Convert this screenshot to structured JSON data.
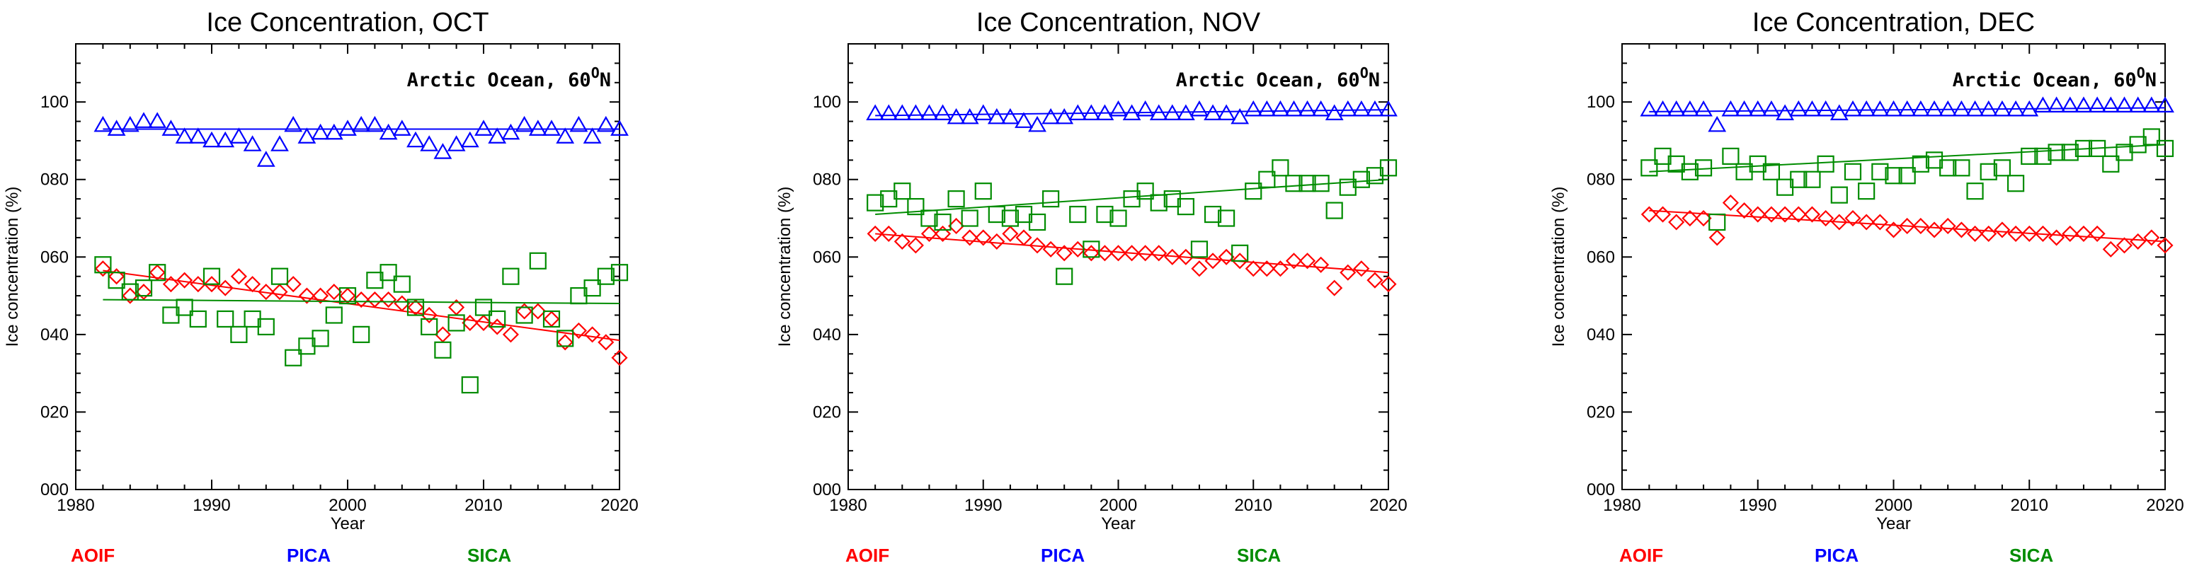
{
  "colors": {
    "AOIF": "#ff0000",
    "PICA": "#0000ff",
    "SICA": "#008c00",
    "axis": "#000000"
  },
  "legend": [
    {
      "name": "AOIF",
      "color": "#ff0000"
    },
    {
      "name": "PICA",
      "color": "#0000ff"
    },
    {
      "name": "SICA",
      "color": "#008c00"
    }
  ],
  "chart_data": [
    {
      "type": "scatter",
      "title": "Ice Concentration, OCT",
      "region_text": "Arctic Ocean, 60",
      "region_sup": "O",
      "region_end": "N",
      "xlabel": "Year",
      "ylabel": "Ice concentration (%)",
      "xlim": [
        1980,
        2020
      ],
      "ylim": [
        0,
        115
      ],
      "xticks": [
        1980,
        1990,
        2000,
        2010,
        2020
      ],
      "yticks": [
        0,
        20,
        40,
        60,
        80,
        100
      ],
      "ytick_labels": [
        "000",
        "020",
        "040",
        "060",
        "080",
        "100"
      ],
      "x": [
        1982,
        1983,
        1984,
        1985,
        1986,
        1987,
        1988,
        1989,
        1990,
        1991,
        1992,
        1993,
        1994,
        1995,
        1996,
        1997,
        1998,
        1999,
        2000,
        2001,
        2002,
        2003,
        2004,
        2005,
        2006,
        2007,
        2008,
        2009,
        2010,
        2011,
        2012,
        2013,
        2014,
        2015,
        2016,
        2017,
        2018,
        2019,
        2020
      ],
      "series": [
        {
          "name": "PICA",
          "marker": "triangle",
          "values": [
            94,
            93,
            94,
            95,
            95,
            93,
            91,
            91,
            90,
            90,
            91,
            89,
            85,
            89,
            94,
            91,
            92,
            92,
            93,
            94,
            94,
            92,
            93,
            90,
            89,
            87,
            89,
            90,
            93,
            91,
            92,
            94,
            93,
            93,
            91,
            94,
            91,
            94,
            93
          ],
          "trend": [
            93.0,
            93.0
          ]
        },
        {
          "name": "AOIF",
          "marker": "diamond",
          "values": [
            57,
            55,
            50,
            51,
            56,
            53,
            54,
            53,
            53,
            52,
            55,
            53,
            51,
            51,
            53,
            50,
            50,
            51,
            50,
            49,
            49,
            49,
            48,
            47,
            45,
            40,
            47,
            43,
            43,
            42,
            40,
            46,
            46,
            44,
            38,
            41,
            40,
            38,
            34
          ],
          "trend": [
            56.5,
            38.5
          ]
        },
        {
          "name": "SICA",
          "marker": "square",
          "values": [
            58,
            54,
            51,
            52,
            56,
            45,
            47,
            44,
            55,
            44,
            40,
            44,
            42,
            55,
            34,
            37,
            39,
            45,
            50,
            40,
            54,
            56,
            53,
            47,
            42,
            36,
            43,
            27,
            47,
            44,
            55,
            45,
            59,
            44,
            39,
            50,
            52,
            55,
            56
          ],
          "trend": [
            49.0,
            48.0
          ]
        }
      ]
    },
    {
      "type": "scatter",
      "title": "Ice Concentration, NOV",
      "region_text": "Arctic Ocean, 60",
      "region_sup": "O",
      "region_end": "N",
      "xlabel": "Year",
      "ylabel": "Ice concentration (%)",
      "xlim": [
        1980,
        2020
      ],
      "ylim": [
        0,
        115
      ],
      "xticks": [
        1980,
        1990,
        2000,
        2010,
        2020
      ],
      "yticks": [
        0,
        20,
        40,
        60,
        80,
        100
      ],
      "ytick_labels": [
        "000",
        "020",
        "040",
        "060",
        "080",
        "100"
      ],
      "x": [
        1982,
        1983,
        1984,
        1985,
        1986,
        1987,
        1988,
        1989,
        1990,
        1991,
        1992,
        1993,
        1994,
        1995,
        1996,
        1997,
        1998,
        1999,
        2000,
        2001,
        2002,
        2003,
        2004,
        2005,
        2006,
        2007,
        2008,
        2009,
        2010,
        2011,
        2012,
        2013,
        2014,
        2015,
        2016,
        2017,
        2018,
        2019,
        2020
      ],
      "series": [
        {
          "name": "PICA",
          "marker": "triangle",
          "values": [
            97,
            97,
            97,
            97,
            97,
            97,
            96,
            96,
            97,
            96,
            96,
            95,
            94,
            96,
            96,
            97,
            97,
            97,
            98,
            97,
            98,
            97,
            97,
            97,
            98,
            97,
            97,
            96,
            98,
            98,
            98,
            98,
            98,
            98,
            97,
            98,
            98,
            98,
            98
          ],
          "trend": [
            96.5,
            98.0
          ]
        },
        {
          "name": "AOIF",
          "marker": "diamond",
          "values": [
            66,
            66,
            64,
            63,
            66,
            66,
            68,
            65,
            65,
            64,
            66,
            65,
            63,
            62,
            61,
            62,
            61,
            61,
            61,
            61,
            61,
            61,
            60,
            60,
            57,
            59,
            60,
            59,
            57,
            57,
            57,
            59,
            59,
            58,
            52,
            56,
            57,
            54,
            53
          ],
          "trend": [
            66.0,
            56.0
          ]
        },
        {
          "name": "SICA",
          "marker": "square",
          "values": [
            74,
            75,
            77,
            73,
            70,
            69,
            75,
            70,
            77,
            71,
            70,
            71,
            69,
            75,
            55,
            71,
            62,
            71,
            70,
            75,
            77,
            74,
            75,
            73,
            62,
            71,
            70,
            61,
            77,
            80,
            83,
            79,
            79,
            79,
            72,
            78,
            80,
            81,
            83
          ],
          "trend": [
            71.0,
            80.0
          ]
        }
      ]
    },
    {
      "type": "scatter",
      "title": "Ice Concentration, DEC",
      "region_text": "Arctic Ocean, 60",
      "region_sup": "O",
      "region_end": "N",
      "xlabel": "Year",
      "ylabel": "Ice concentration (%)",
      "xlim": [
        1980,
        2020
      ],
      "ylim": [
        0,
        115
      ],
      "xticks": [
        1980,
        1990,
        2000,
        2010,
        2020
      ],
      "yticks": [
        0,
        20,
        40,
        60,
        80,
        100
      ],
      "ytick_labels": [
        "000",
        "020",
        "040",
        "060",
        "080",
        "100"
      ],
      "x": [
        1982,
        1983,
        1984,
        1985,
        1986,
        1987,
        1988,
        1989,
        1990,
        1991,
        1992,
        1993,
        1994,
        1995,
        1996,
        1997,
        1998,
        1999,
        2000,
        2001,
        2002,
        2003,
        2004,
        2005,
        2006,
        2007,
        2008,
        2009,
        2010,
        2011,
        2012,
        2013,
        2014,
        2015,
        2016,
        2017,
        2018,
        2019,
        2020
      ],
      "series": [
        {
          "name": "PICA",
          "marker": "triangle",
          "values": [
            98,
            98,
            98,
            98,
            98,
            94,
            98,
            98,
            98,
            98,
            97,
            98,
            98,
            98,
            97,
            98,
            98,
            98,
            98,
            98,
            98,
            98,
            98,
            98,
            98,
            98,
            98,
            98,
            98,
            99,
            99,
            99,
            99,
            99,
            99,
            99,
            99,
            99,
            99
          ],
          "trend": [
            97.5,
            98.5
          ]
        },
        {
          "name": "AOIF",
          "marker": "diamond",
          "values": [
            71,
            71,
            69,
            70,
            70,
            65,
            74,
            72,
            71,
            71,
            71,
            71,
            71,
            70,
            69,
            70,
            69,
            69,
            67,
            68,
            68,
            67,
            68,
            67,
            66,
            66,
            67,
            66,
            66,
            66,
            65,
            66,
            66,
            66,
            62,
            63,
            64,
            65,
            63
          ],
          "trend": [
            72.0,
            64.0
          ]
        },
        {
          "name": "SICA",
          "marker": "square",
          "values": [
            83,
            86,
            84,
            82,
            83,
            69,
            86,
            82,
            84,
            82,
            78,
            80,
            80,
            84,
            76,
            82,
            77,
            82,
            81,
            81,
            84,
            85,
            83,
            83,
            77,
            82,
            83,
            79,
            86,
            86,
            87,
            87,
            88,
            88,
            84,
            87,
            89,
            91,
            88
          ],
          "trend": [
            82.0,
            89.0
          ]
        }
      ]
    }
  ]
}
